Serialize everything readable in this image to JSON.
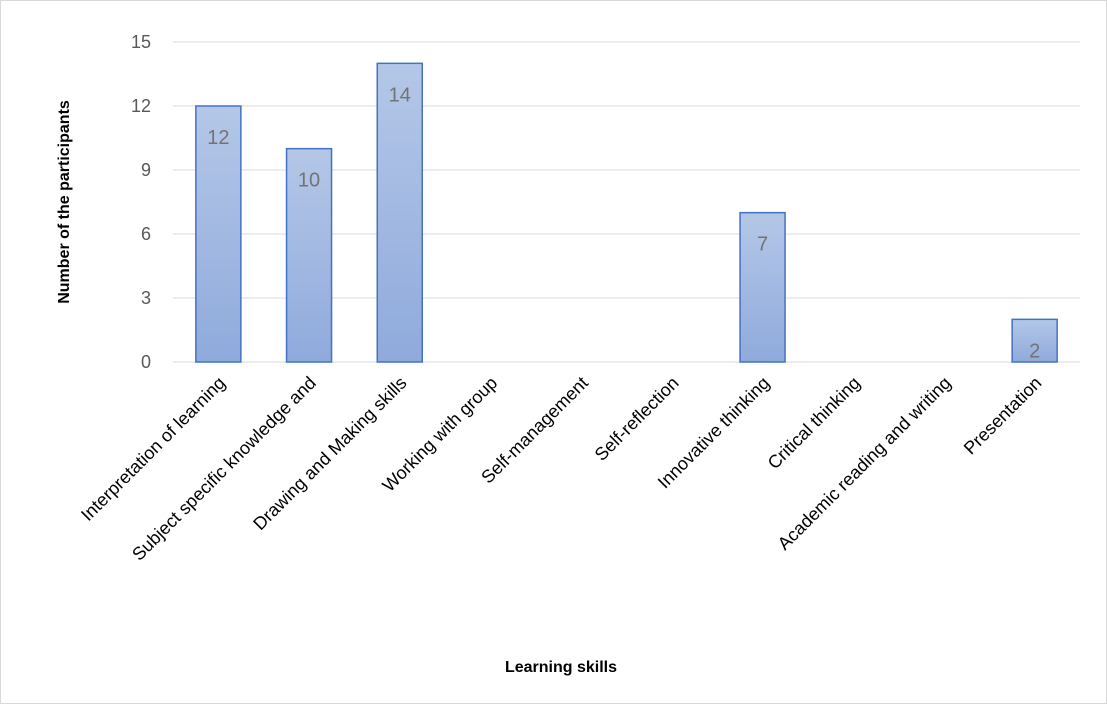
{
  "chart_data": {
    "type": "bar",
    "xlabel": "Learning skills",
    "ylabel": "Number of the participants",
    "categories": [
      "Interpretation of learning",
      "Subject specific knowledge and",
      "Drawing and Making skills",
      "Working with group",
      "Self-management",
      "Self-reflection",
      "Innovative thinking",
      "Critical thinking",
      "Academic reading and writing",
      "Presentation"
    ],
    "values": [
      12,
      10,
      14,
      0,
      0,
      0,
      7,
      0,
      0,
      2
    ],
    "data_labels": [
      "12",
      "10",
      "14",
      "",
      "",
      "",
      "7",
      "",
      "",
      "2"
    ],
    "ylim": [
      0,
      15
    ],
    "yticks": [
      0,
      3,
      6,
      9,
      12,
      15
    ],
    "grid": true,
    "legend": "none",
    "colors": {
      "bar_top": "#b4c7e7",
      "bar_bottom": "#8faadc",
      "bar_border": "#4472c4",
      "grid": "#d9d9d9"
    }
  }
}
